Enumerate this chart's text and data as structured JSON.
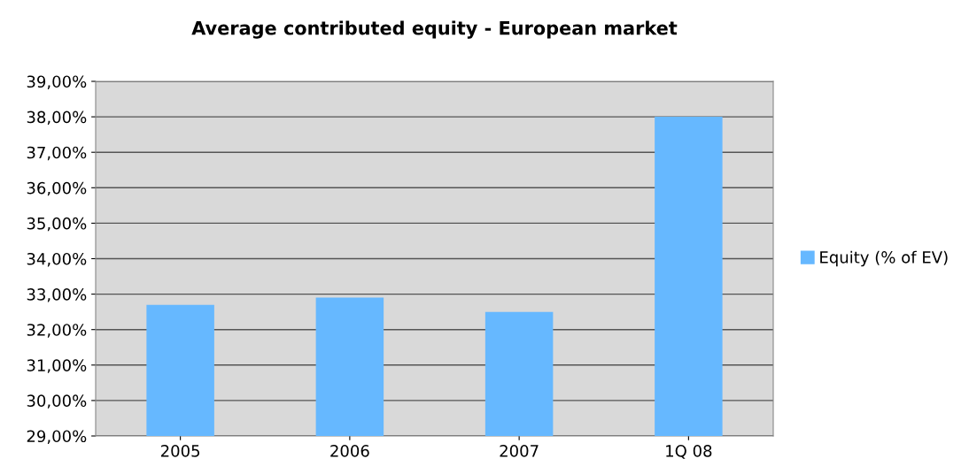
{
  "chart_data": {
    "type": "bar",
    "title": "Average contributed equity - European market",
    "categories": [
      "2005",
      "2006",
      "2007",
      "1Q 08"
    ],
    "series": [
      {
        "name": "Equity (% of EV)",
        "color": "#66b8ff",
        "values": [
          32.7,
          32.9,
          32.5,
          38.0
        ]
      }
    ],
    "ylim": [
      29,
      39
    ],
    "yticks": [
      {
        "value": 29,
        "label": "29,00%"
      },
      {
        "value": 30,
        "label": "30,00%"
      },
      {
        "value": 31,
        "label": "31,00%"
      },
      {
        "value": 32,
        "label": "32,00%"
      },
      {
        "value": 33,
        "label": "33,00%"
      },
      {
        "value": 34,
        "label": "34,00%"
      },
      {
        "value": 35,
        "label": "35,00%"
      },
      {
        "value": 36,
        "label": "36,00%"
      },
      {
        "value": 37,
        "label": "37,00%"
      },
      {
        "value": 38,
        "label": "38,00%"
      },
      {
        "value": 39,
        "label": "39,00%"
      }
    ],
    "grid": "y",
    "legend": "right"
  }
}
